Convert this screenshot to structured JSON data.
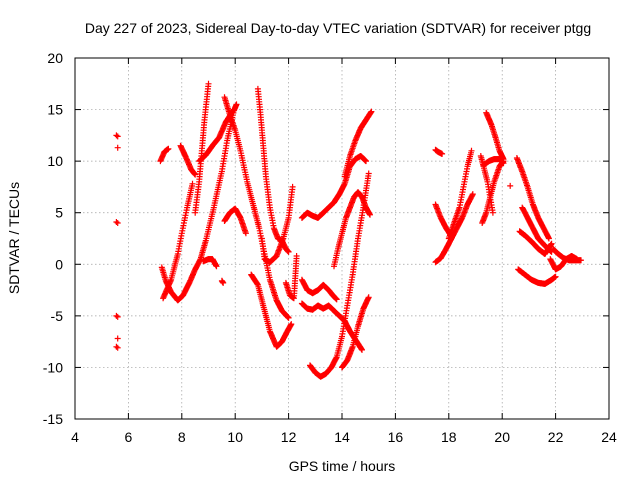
{
  "chart_data": {
    "type": "scatter",
    "title": "Day 227 of 2023, Sidereal Day-to-day VTEC variation (SDTVAR) for receiver ptgg",
    "xlabel": "GPS time / hours",
    "ylabel": "SDTVAR / TECUs",
    "xlim": [
      4,
      24
    ],
    "ylim": [
      -15,
      20
    ],
    "xticks": [
      "4",
      "6",
      "8",
      "10",
      "12",
      "14",
      "16",
      "18",
      "20",
      "22",
      "24"
    ],
    "yticks": [
      "-15",
      "-10",
      "-5",
      "0",
      "5",
      "10",
      "15",
      "20"
    ],
    "grid": true,
    "marker": "plus",
    "color": "#ff0000",
    "series": [
      {
        "name": "isolated-06h",
        "points": [
          [
            5.55,
            12.5
          ],
          [
            5.6,
            12.4
          ],
          [
            5.6,
            11.3
          ],
          [
            5.55,
            4.1
          ],
          [
            5.6,
            4.0
          ],
          [
            5.55,
            -5.0
          ],
          [
            5.6,
            -5.1
          ],
          [
            5.6,
            -7.2
          ],
          [
            5.55,
            -8.0
          ],
          [
            5.6,
            -8.1
          ]
        ]
      },
      {
        "name": "arc-07-1",
        "points": [
          [
            7.2,
            10.0
          ],
          [
            7.35,
            10.9
          ],
          [
            7.5,
            11.2
          ]
        ]
      },
      {
        "name": "arc-07-2",
        "points": [
          [
            7.25,
            -0.3
          ],
          [
            7.4,
            -1.6
          ],
          [
            7.6,
            -2.7
          ],
          [
            7.85,
            -3.5
          ],
          [
            8.05,
            -3.0
          ]
        ]
      },
      {
        "name": "arc-07-3",
        "points": [
          [
            7.3,
            -3.3
          ],
          [
            7.6,
            -1.5
          ],
          [
            7.85,
            1.0
          ],
          [
            8.0,
            3.0
          ],
          [
            8.2,
            5.5
          ],
          [
            8.4,
            7.8
          ]
        ]
      },
      {
        "name": "arc-08-1",
        "points": [
          [
            7.95,
            11.5
          ],
          [
            8.15,
            10.4
          ],
          [
            8.35,
            9.2
          ],
          [
            8.5,
            8.7
          ]
        ]
      },
      {
        "name": "arc-08-2",
        "points": [
          [
            8.05,
            -3.0
          ],
          [
            8.3,
            -1.7
          ],
          [
            8.5,
            -0.5
          ],
          [
            8.7,
            0.5
          ],
          [
            8.9,
            2.3
          ],
          [
            9.2,
            5.5
          ],
          [
            9.5,
            9.0
          ],
          [
            9.7,
            12.0
          ],
          [
            9.95,
            14.9
          ],
          [
            10.05,
            15.5
          ]
        ]
      },
      {
        "name": "arc-08-3",
        "points": [
          [
            8.5,
            5.0
          ],
          [
            8.65,
            8.0
          ],
          [
            8.75,
            11.0
          ],
          [
            8.85,
            14.0
          ],
          [
            9.0,
            17.5
          ]
        ]
      },
      {
        "name": "arc-08-4",
        "points": [
          [
            8.65,
            10.0
          ],
          [
            8.9,
            10.6
          ],
          [
            9.15,
            11.5
          ],
          [
            9.4,
            12.3
          ],
          [
            9.65,
            13.8
          ],
          [
            9.95,
            15.0
          ]
        ]
      },
      {
        "name": "arc-09-1",
        "points": [
          [
            8.8,
            0.3
          ],
          [
            9.0,
            0.5
          ],
          [
            9.15,
            0.5
          ],
          [
            9.3,
            -0.2
          ]
        ]
      },
      {
        "name": "arc-09-2",
        "points": [
          [
            9.5,
            -1.6
          ],
          [
            9.55,
            -1.8
          ]
        ]
      },
      {
        "name": "arc-09-3",
        "points": [
          [
            9.6,
            16.2
          ],
          [
            9.8,
            14.5
          ],
          [
            10.0,
            13.0
          ],
          [
            10.2,
            11.0
          ],
          [
            10.45,
            8.0
          ],
          [
            10.7,
            5.5
          ],
          [
            10.9,
            3.5
          ],
          [
            11.1,
            1.0
          ],
          [
            11.3,
            -1.5
          ],
          [
            11.55,
            -3.5
          ],
          [
            11.75,
            -4.5
          ],
          [
            12.0,
            -5.2
          ]
        ]
      },
      {
        "name": "arc-10-1",
        "points": [
          [
            9.6,
            4.2
          ],
          [
            9.8,
            5.0
          ],
          [
            10.0,
            5.4
          ],
          [
            10.2,
            4.5
          ],
          [
            10.4,
            3.0
          ]
        ]
      },
      {
        "name": "arc-11-1",
        "points": [
          [
            10.85,
            17.0
          ],
          [
            10.95,
            14.5
          ],
          [
            11.05,
            11.5
          ],
          [
            11.15,
            8.5
          ],
          [
            11.3,
            5.5
          ],
          [
            11.45,
            3.5
          ],
          [
            11.6,
            2.5
          ],
          [
            11.75,
            2.3
          ],
          [
            11.9,
            1.5
          ],
          [
            12.0,
            1.2
          ]
        ]
      },
      {
        "name": "arc-11-2",
        "points": [
          [
            10.6,
            -1.0
          ],
          [
            10.85,
            -2.0
          ],
          [
            11.05,
            -4.0
          ],
          [
            11.3,
            -6.5
          ],
          [
            11.55,
            -8.0
          ],
          [
            11.75,
            -7.5
          ],
          [
            11.95,
            -6.5
          ],
          [
            12.1,
            -5.8
          ]
        ]
      },
      {
        "name": "arc-11-3",
        "points": [
          [
            11.0,
            2.5
          ],
          [
            11.1,
            0.5
          ],
          [
            11.3,
            0.2
          ],
          [
            11.55,
            0.8
          ],
          [
            11.8,
            2.5
          ],
          [
            12.0,
            4.5
          ],
          [
            12.15,
            7.5
          ]
        ]
      },
      {
        "name": "arc-12-1",
        "points": [
          [
            11.9,
            -1.8
          ],
          [
            12.05,
            -3.0
          ],
          [
            12.2,
            -3.3
          ],
          [
            12.3,
            0.8
          ]
        ]
      },
      {
        "name": "arc-12-2",
        "points": [
          [
            12.5,
            -1.5
          ],
          [
            12.7,
            -2.5
          ],
          [
            12.9,
            -2.8
          ],
          [
            13.1,
            -2.5
          ],
          [
            13.3,
            -2.0
          ],
          [
            13.5,
            -2.5
          ],
          [
            13.65,
            -3.0
          ],
          [
            13.8,
            -3.4
          ]
        ]
      },
      {
        "name": "arc-12-3",
        "points": [
          [
            12.5,
            -3.8
          ],
          [
            12.7,
            -4.3
          ],
          [
            12.9,
            -4.4
          ],
          [
            13.1,
            -4.0
          ],
          [
            13.3,
            -4.3
          ],
          [
            13.5,
            -4.0
          ],
          [
            13.7,
            -4.5
          ],
          [
            13.9,
            -5.0
          ],
          [
            14.1,
            -5.5
          ],
          [
            14.3,
            -6.5
          ],
          [
            14.55,
            -7.5
          ],
          [
            14.75,
            -8.3
          ]
        ]
      },
      {
        "name": "arc-12-4",
        "points": [
          [
            12.5,
            4.5
          ],
          [
            12.7,
            5.0
          ],
          [
            12.9,
            4.7
          ],
          [
            13.1,
            4.5
          ],
          [
            13.3,
            5.0
          ],
          [
            13.5,
            5.5
          ],
          [
            13.7,
            6.0
          ],
          [
            13.9,
            6.8
          ],
          [
            14.1,
            7.8
          ],
          [
            14.3,
            9.5
          ],
          [
            14.5,
            10.2
          ],
          [
            14.7,
            10.5
          ],
          [
            14.9,
            10.0
          ]
        ]
      },
      {
        "name": "arc-12-5",
        "points": [
          [
            12.8,
            -9.8
          ],
          [
            13.0,
            -10.5
          ],
          [
            13.2,
            -10.9
          ],
          [
            13.4,
            -10.6
          ],
          [
            13.6,
            -10.0
          ],
          [
            13.8,
            -9.0
          ],
          [
            14.0,
            -7.0
          ],
          [
            14.2,
            -4.0
          ],
          [
            14.4,
            -1.0
          ],
          [
            14.6,
            2.5
          ],
          [
            14.8,
            5.5
          ],
          [
            15.0,
            8.8
          ]
        ]
      },
      {
        "name": "arc-13-1",
        "points": [
          [
            13.7,
            -0.2
          ],
          [
            13.85,
            1.5
          ],
          [
            14.0,
            3.0
          ],
          [
            14.15,
            4.5
          ],
          [
            14.3,
            5.5
          ],
          [
            14.45,
            6.5
          ],
          [
            14.6,
            7.0
          ],
          [
            14.75,
            6.5
          ],
          [
            14.9,
            5.5
          ],
          [
            15.05,
            4.8
          ]
        ]
      },
      {
        "name": "arc-14-1",
        "points": [
          [
            14.0,
            -10.0
          ],
          [
            14.2,
            -9.3
          ],
          [
            14.4,
            -8.0
          ],
          [
            14.6,
            -6.0
          ],
          [
            14.8,
            -4.3
          ],
          [
            15.0,
            -3.2
          ]
        ]
      },
      {
        "name": "arc-14-2",
        "points": [
          [
            14.1,
            8.5
          ],
          [
            14.3,
            10.5
          ],
          [
            14.5,
            12.0
          ],
          [
            14.7,
            13.2
          ],
          [
            14.9,
            14.0
          ],
          [
            15.1,
            14.8
          ]
        ]
      },
      {
        "name": "arc-17-1",
        "points": [
          [
            17.5,
            11.1
          ],
          [
            17.6,
            10.9
          ],
          [
            17.75,
            10.7
          ]
        ]
      },
      {
        "name": "arc-17-2",
        "points": [
          [
            17.5,
            5.8
          ],
          [
            17.7,
            4.5
          ],
          [
            17.9,
            3.5
          ],
          [
            18.1,
            2.7
          ]
        ]
      },
      {
        "name": "arc-17-3",
        "points": [
          [
            17.5,
            0.2
          ],
          [
            17.7,
            0.6
          ],
          [
            17.9,
            1.5
          ],
          [
            18.1,
            2.5
          ],
          [
            18.3,
            3.5
          ],
          [
            18.5,
            4.5
          ],
          [
            18.7,
            5.8
          ],
          [
            18.9,
            6.8
          ]
        ]
      },
      {
        "name": "arc-18-1",
        "points": [
          [
            18.0,
            2.5
          ],
          [
            18.2,
            4.0
          ],
          [
            18.4,
            5.5
          ],
          [
            18.55,
            7.5
          ],
          [
            18.7,
            9.5
          ],
          [
            18.85,
            11.0
          ]
        ]
      },
      {
        "name": "arc-19-1",
        "points": [
          [
            19.2,
            10.5
          ],
          [
            19.3,
            9.5
          ],
          [
            19.45,
            8.0
          ],
          [
            19.55,
            6.5
          ],
          [
            19.65,
            5.0
          ]
        ]
      },
      {
        "name": "arc-19-2",
        "points": [
          [
            19.25,
            4.0
          ],
          [
            19.4,
            5.0
          ],
          [
            19.55,
            6.5
          ],
          [
            19.7,
            8.0
          ],
          [
            19.9,
            9.5
          ],
          [
            20.05,
            10.0
          ]
        ]
      },
      {
        "name": "arc-19-3",
        "points": [
          [
            19.3,
            9.6
          ],
          [
            19.5,
            10.0
          ],
          [
            19.7,
            10.2
          ],
          [
            19.9,
            10.2
          ],
          [
            20.05,
            9.8
          ]
        ]
      },
      {
        "name": "arc-19-4",
        "points": [
          [
            19.4,
            14.7
          ],
          [
            19.6,
            13.5
          ],
          [
            19.75,
            12.3
          ],
          [
            19.9,
            11.0
          ],
          [
            20.05,
            10.2
          ]
        ]
      },
      {
        "name": "arc-20-1",
        "points": [
          [
            20.3,
            7.6
          ]
        ]
      },
      {
        "name": "arc-20-2",
        "points": [
          [
            20.55,
            10.3
          ],
          [
            20.75,
            9.0
          ],
          [
            20.95,
            7.5
          ],
          [
            21.15,
            5.8
          ],
          [
            21.35,
            4.5
          ],
          [
            21.55,
            3.5
          ],
          [
            21.75,
            2.5
          ]
        ]
      },
      {
        "name": "arc-20-3",
        "points": [
          [
            20.65,
            3.2
          ],
          [
            20.85,
            2.8
          ],
          [
            21.1,
            2.2
          ],
          [
            21.35,
            1.5
          ],
          [
            21.6,
            1.0
          ],
          [
            21.85,
            2.0
          ]
        ]
      },
      {
        "name": "arc-20-4",
        "points": [
          [
            20.75,
            5.5
          ],
          [
            20.95,
            4.5
          ],
          [
            21.15,
            3.5
          ],
          [
            21.35,
            2.5
          ],
          [
            21.6,
            1.8
          ],
          [
            21.85,
            1.2
          ]
        ]
      },
      {
        "name": "arc-20-5",
        "points": [
          [
            20.6,
            -0.5
          ],
          [
            20.85,
            -1.0
          ],
          [
            21.1,
            -1.5
          ],
          [
            21.35,
            -1.8
          ],
          [
            21.6,
            -1.9
          ],
          [
            21.85,
            -1.5
          ],
          [
            22.0,
            -1.2
          ]
        ]
      },
      {
        "name": "arc-22-1",
        "points": [
          [
            21.8,
            0.5
          ],
          [
            22.0,
            -0.5
          ],
          [
            22.2,
            -0.2
          ],
          [
            22.4,
            0.5
          ],
          [
            22.6,
            0.8
          ],
          [
            22.8,
            0.5
          ]
        ]
      },
      {
        "name": "arc-22-2",
        "points": [
          [
            21.9,
            1.5
          ],
          [
            22.1,
            1.0
          ],
          [
            22.3,
            0.6
          ],
          [
            22.5,
            0.4
          ],
          [
            22.75,
            0.4
          ],
          [
            22.95,
            0.4
          ]
        ]
      }
    ]
  }
}
